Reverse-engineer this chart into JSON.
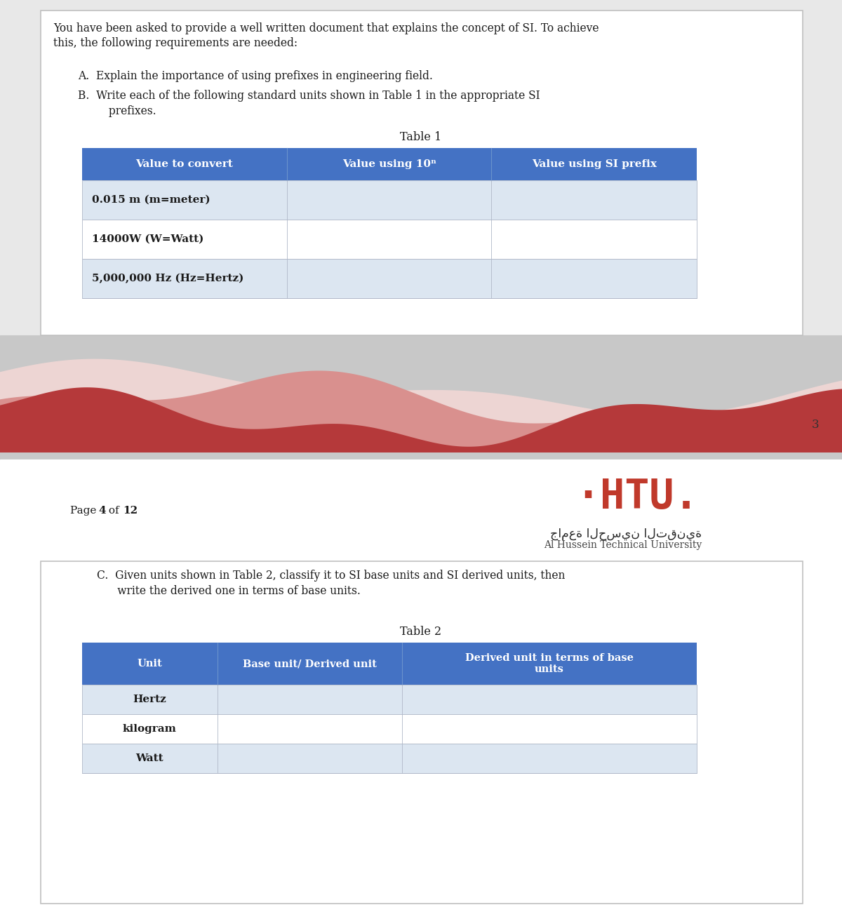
{
  "bg_color": "#e8e8e8",
  "page_bg": "#ffffff",
  "intro_text_line1": "You have been asked to provide a well written document that explains the concept of SI. To achieve",
  "intro_text_line2": "this, the following requirements are needed:",
  "item_A": "A.  Explain the importance of using prefixes in engineering field.",
  "item_B_line1": "B.  Write each of the following standard units shown in Table 1 in the appropriate SI",
  "item_B_line2": "         prefixes.",
  "table1_title": "Table 1",
  "table1_header": [
    "Value to convert",
    "Value using 10ⁿ",
    "Value using SI prefix"
  ],
  "table1_rows": [
    [
      "0.015 m (m=meter)",
      "",
      ""
    ],
    [
      "14000W (W=Watt)",
      "",
      ""
    ],
    [
      "5,000,000 Hz (Hz=Hertz)",
      "",
      ""
    ]
  ],
  "table1_header_bg": "#4472c4",
  "table1_header_color": "#ffffff",
  "table1_row_bg_odd": "#dce6f1",
  "table1_row_bg_even": "#ffffff",
  "wave_dark": "#b5393a",
  "wave_mid": "#d9908e",
  "wave_light": "#edd5d3",
  "wave_bg": "#c8c8c8",
  "page_num": "3",
  "arabic_text": "جامعة الحسين التقنية",
  "english_univ": "Al Hussein Technical University",
  "item_C_line1": "C.  Given units shown in Table 2, classify it to SI base units and SI derived units, then",
  "item_C_line2": "      write the derived one in terms of base units.",
  "table2_title": "Table 2",
  "table2_header": [
    "Unit",
    "Base unit/ Derived unit",
    "Derived unit in terms of base\nunits"
  ],
  "table2_rows": [
    [
      "Hertz",
      "",
      ""
    ],
    [
      "kilogram",
      "",
      ""
    ],
    [
      "Watt",
      "",
      ""
    ]
  ],
  "table2_header_bg": "#4472c4",
  "table2_header_color": "#ffffff",
  "table2_row_bg_odd": "#dce6f1",
  "table2_row_bg_even": "#ffffff"
}
